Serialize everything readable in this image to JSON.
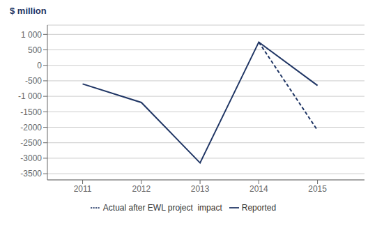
{
  "chart_data": {
    "type": "line",
    "ylabel": "$ million",
    "series": [
      {
        "name": "Reported",
        "color": "#1f3564",
        "line_style": "solid",
        "x": [
          2011,
          2012,
          2013,
          2014,
          2015
        ],
        "values": [
          -600,
          -1200,
          -3150,
          750,
          -650
        ]
      },
      {
        "name": "Actual after EWL project  impact",
        "color": "#1f3564",
        "line_style": "dashed",
        "x": [
          2014,
          2015
        ],
        "values": [
          750,
          -2100
        ]
      }
    ],
    "xlim": [
      2010.4,
      2015.8
    ],
    "xticks": [
      2011,
      2012,
      2013,
      2014,
      2015
    ],
    "ylim": [
      -3700,
      1300
    ],
    "yticks": [
      {
        "value": 1000,
        "label": "1 000"
      },
      500,
      0,
      -500,
      {
        "value": -1000,
        "label": "-1 000"
      },
      -1500,
      -2000,
      -2500,
      -3000,
      -3500
    ],
    "grid": true,
    "legend": "bottom"
  }
}
